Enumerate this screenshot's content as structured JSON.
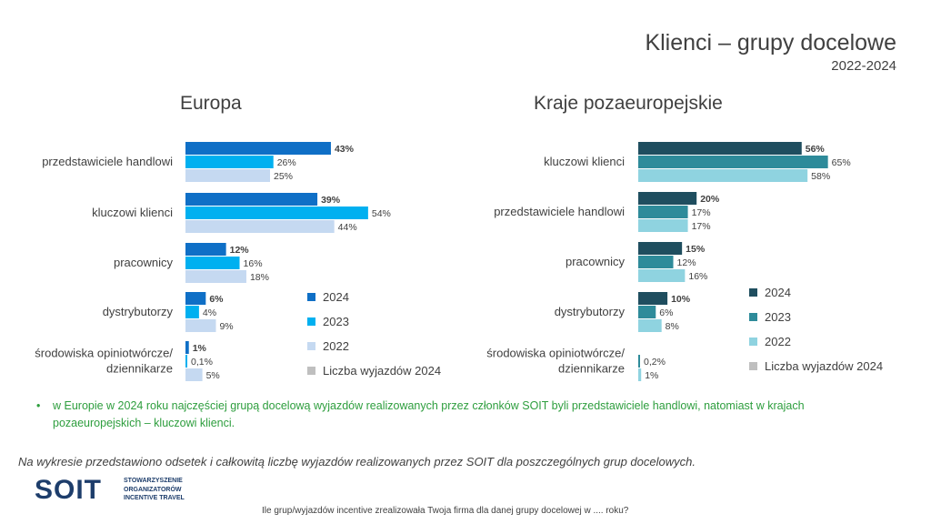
{
  "header": {
    "title": "Klienci – grupy docelowe",
    "subtitle": "2022-2024"
  },
  "colors": {
    "europe": [
      "#0f6fc6",
      "#00b0f0",
      "#c5d9f1"
    ],
    "non_europe": [
      "#1f4e5f",
      "#2e8b9a",
      "#8fd3e0"
    ],
    "trips": "#bfbfbf"
  },
  "chart_data": [
    {
      "type": "bar",
      "orientation": "horizontal",
      "title": "Europa",
      "categories": [
        "przedstawiciele handlowi",
        "kluczowi klienci",
        "pracownicy",
        "dystrybutorzy",
        "środowiska opiniotwórcze/ dziennikarze"
      ],
      "series": [
        {
          "name": "2024",
          "values": [
            43,
            39,
            12,
            6,
            1
          ],
          "labels": [
            "43%",
            "39%",
            "12%",
            "6%",
            "1%"
          ]
        },
        {
          "name": "2023",
          "values": [
            26,
            54,
            16,
            4,
            0.1
          ],
          "labels": [
            "26%",
            "54%",
            "16%",
            "4%",
            "0,1%"
          ]
        },
        {
          "name": "2022",
          "values": [
            25,
            44,
            18,
            9,
            5
          ],
          "labels": [
            "25%",
            "44%",
            "18%",
            "9%",
            "5%"
          ]
        }
      ],
      "legend": [
        "2024",
        "2023",
        "2022",
        "Liczba wyjazdów 2024"
      ],
      "legend_position": "right",
      "xlim": [
        0,
        60
      ],
      "grid": false
    },
    {
      "type": "bar",
      "orientation": "horizontal",
      "title": "Kraje pozaeuropejskie",
      "categories": [
        "kluczowi klienci",
        "przedstawiciele handlowi",
        "pracownicy",
        "dystrybutorzy",
        "środowiska opiniotwórcze/ dziennikarze"
      ],
      "series": [
        {
          "name": "2024",
          "values": [
            56,
            20,
            15,
            10,
            0
          ],
          "labels": [
            "56%",
            "20%",
            "15%",
            "10%",
            ""
          ]
        },
        {
          "name": "2023",
          "values": [
            65,
            17,
            12,
            6,
            0.2
          ],
          "labels": [
            "65%",
            "17%",
            "12%",
            "6%",
            "0,2%"
          ]
        },
        {
          "name": "2022",
          "values": [
            58,
            17,
            16,
            8,
            1
          ],
          "labels": [
            "58%",
            "17%",
            "16%",
            "8%",
            "1%"
          ]
        }
      ],
      "legend": [
        "2024",
        "2023",
        "2022",
        "Liczba wyjazdów 2024"
      ],
      "legend_position": "right",
      "xlim": [
        0,
        75
      ],
      "grid": false
    }
  ],
  "bullet": {
    "marker": "•",
    "text": "w Europie w 2024 roku najczęściej grupą docelową wyjazdów realizowanych przez członków SOIT byli przedstawiciele handlowi, natomiast w krajach pozaeuropejskich – kluczowi klienci."
  },
  "note": "Na wykresie przedstawiono odsetek i całkowitą liczbę wyjazdów realizowanych przez SOIT dla poszczególnych grup docelowych.",
  "logo": {
    "word": "SOIT",
    "lines": [
      "STOWARZYSZENIE",
      "ORGANIZATORÓW",
      "INCENTIVE TRAVEL"
    ]
  },
  "footer": "Ile grup/wyjazdów incentive zrealizowała Twoja firma dla danej grupy docelowej w .... roku?"
}
